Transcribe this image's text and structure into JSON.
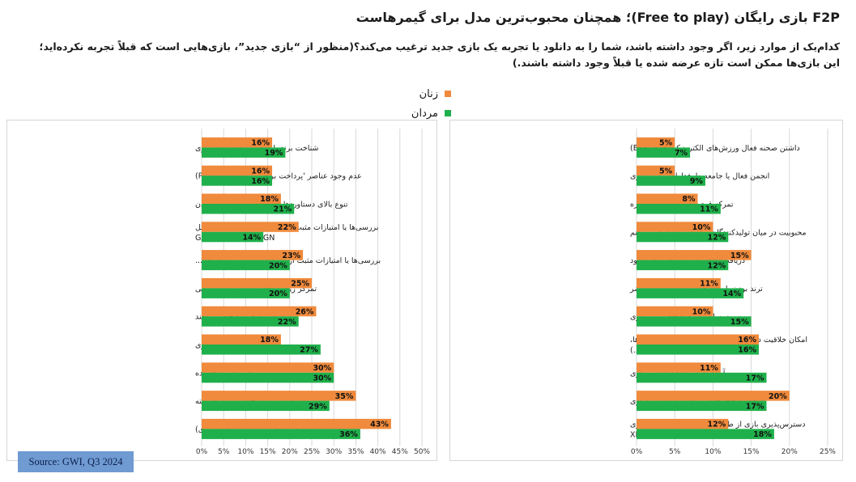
{
  "header": {
    "title": "F2P بازی رایگان (Free to play)؛ همچنان محبوب‌ترین مدل برای گیمرهاست",
    "question_line1": "کدام‌یک از موارد زیر، اگر وجود داشته باشد، شما را به دانلود یا تجربه یک بازی جدید ترغیب می‌کند؟(منظور از “بازی جدید”، بازی‌هایی است که قبلاً تجربه نکرده‌اید؛",
    "question_line2": "این بازی‌ها ممکن است تازه عرضه شده یا قبلاً وجود داشته باشند.)"
  },
  "legend": {
    "items": [
      {
        "label": "زنان",
        "color": "#f08a3c"
      },
      {
        "label": "مردان",
        "color": "#1fb04b"
      }
    ]
  },
  "source": "Source: GWI, Q3 2024",
  "colors": {
    "women": "#f08a3c",
    "men": "#1fb04b",
    "grid": "#d9d9d9"
  },
  "chart_data": [
    {
      "type": "bar",
      "orientation": "horizontal",
      "xlim": [
        0,
        50
      ],
      "ticks": [
        "0%",
        "5%",
        "10%",
        "15%",
        "20%",
        "25%",
        "30%",
        "35%",
        "40%",
        "45%",
        "50%"
      ],
      "tick_values": [
        0,
        5,
        10,
        15,
        20,
        25,
        30,
        35,
        40,
        45,
        50
      ],
      "categories": [
        [
          "شناخت برند یا شخصیت‌های داخل بازی"
        ],
        [
          "عدم وجود عناصر 'پرداخت برای برد' (PAY-TO-WIN)"
        ],
        [
          "تنوع بالای دستاوردها یا قابلیت‌های قابل باز شدن"
        ],
        [
          "بررسی‌ها یا امتیازات مثبت از وب‌سایت‌های نقد بازی (مثل",
          "GAMESRADAR+, IGN"
        ],
        [
          "بررسی‌ها یا امتیازات مثبت از بازیکنان دیگر (مثل نظرات..."
        ],
        [
          "تمرکز زیاد بر حالت تک‌نفره یا داستانی"
        ],
        [
          "دوستانم بازی را انجام می‌دهند"
        ],
        [
          "تخفیف یا فروش ویژه بازی"
        ],
        [
          "توصیه دوستان یا خانواده"
        ],
        [
          "داستان یا روایت جالب و توسعه‌یافته"
        ],
        [
          "بازی رایگان (با خریدهای درون برنامه‌ای اختیاری)"
        ]
      ],
      "series": [
        {
          "name": "زنان",
          "values": [
            16,
            16,
            18,
            22,
            23,
            25,
            26,
            18,
            30,
            35,
            43
          ],
          "labels": [
            "16%",
            "16%",
            "18%",
            "22%",
            "23%",
            "25%",
            "26%",
            "18%",
            "30%",
            "35%",
            "43%"
          ]
        },
        {
          "name": "مردان",
          "values": [
            19,
            16,
            21,
            14,
            20,
            20,
            22,
            27,
            30,
            29,
            36
          ],
          "labels": [
            "19%",
            "16%",
            "21%",
            "14%",
            "20%",
            "20%",
            "22%",
            "27%",
            "30%",
            "29%",
            "36%"
          ]
        }
      ]
    },
    {
      "type": "bar",
      "orientation": "horizontal",
      "xlim": [
        0,
        25
      ],
      "ticks": [
        "0%",
        "5%",
        "10%",
        "15%",
        "20%",
        "25%"
      ],
      "tick_values": [
        0,
        5,
        10,
        15,
        20,
        25
      ],
      "categories": [
        [
          "داشتن صحنه فعال ورزش‌های الکترونیک (ESPORTS)"
        ],
        [
          "انجمن فعال یا جامعه طرفداران پرشور بازی"
        ],
        [
          "تمرکز قوی روی گیم‌پلی چندنفره"
        ],
        [
          "محبوبیت در میان تولیدکنندگان محتوایی که دنبال می‌کنم"
        ],
        [
          "دریافت پاداش درون‌بازی برای دانلود"
        ],
        [
          "ترند بودن یا پرطرفدار بودن در حال حاضر"
        ],
        [
          "به‌روزرسانی یا وصله‌های مکرر بازی"
        ],
        [
          "امکان خلاقیت در بازی (مثل سفارشی‌سازی شخصیت‌ها،",
          "نقشه‌ها و ...)"
        ],
        [
          "آشنایی با سازنده یا ناشر بازی"
        ],
        [
          "شخصیت‌های جذاب و قابل سفارشی‌سازی"
        ],
        [
          "دسترس‌پذیری بازی از طریق سرویس‌های اشتراک بازی",
          "(مانند XBOX GAME PASS"
        ]
      ],
      "series": [
        {
          "name": "زنان",
          "values": [
            5,
            5,
            8,
            10,
            15,
            11,
            10,
            16,
            11,
            20,
            12
          ],
          "labels": [
            "5%",
            "5%",
            "8%",
            "10%",
            "15%",
            "11%",
            "10%",
            "16%",
            "11%",
            "20%",
            "12%"
          ]
        },
        {
          "name": "مردان",
          "values": [
            7,
            9,
            11,
            12,
            12,
            14,
            15,
            16,
            17,
            17,
            18
          ],
          "labels": [
            "7%",
            "9%",
            "11%",
            "12%",
            "12%",
            "14%",
            "15%",
            "16%",
            "17%",
            "17%",
            "18%"
          ]
        }
      ]
    }
  ]
}
